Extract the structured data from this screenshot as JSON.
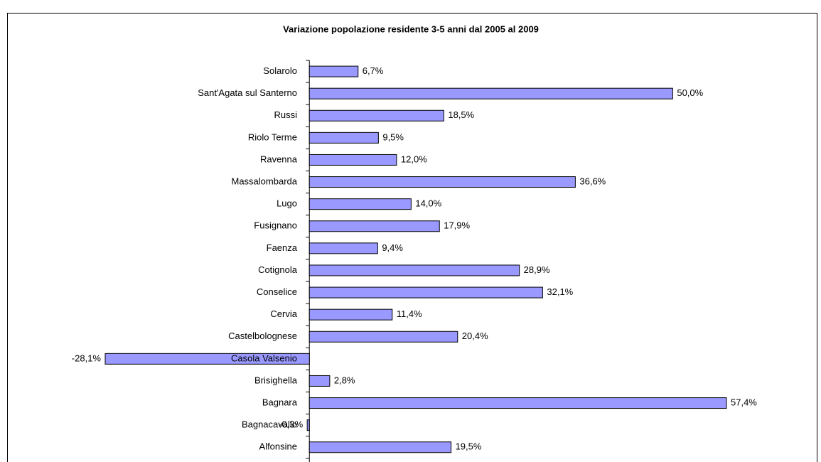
{
  "chart_data": {
    "type": "bar",
    "orientation": "horizontal",
    "title": "Variazione popolazione residente 3-5 anni dal 2005 al 2009",
    "categories": [
      "Solarolo",
      "Sant'Agata sul Santerno",
      "Russi",
      "Riolo Terme",
      "Ravenna",
      "Massalombarda",
      "Lugo",
      "Fusignano",
      "Faenza",
      "Cotignola",
      "Conselice",
      "Cervia",
      "Castelbolognese",
      "Casola Valsenio",
      "Brisighella",
      "Bagnara",
      "Bagnacavallo",
      "Alfonsine"
    ],
    "values": [
      6.7,
      50.0,
      18.5,
      9.5,
      12.0,
      36.6,
      14.0,
      17.9,
      9.4,
      28.9,
      32.1,
      11.4,
      20.4,
      -28.1,
      2.8,
      57.4,
      -0.3,
      19.5
    ],
    "value_labels": [
      "6,7%",
      "50,0%",
      "18,5%",
      "9,5%",
      "12,0%",
      "36,6%",
      "14,0%",
      "17,9%",
      "9,4%",
      "28,9%",
      "32,1%",
      "11,4%",
      "20,4%",
      "-28,1%",
      "2,8%",
      "57,4%",
      "-0,3%",
      "19,5%"
    ],
    "color": "#9999ff"
  }
}
